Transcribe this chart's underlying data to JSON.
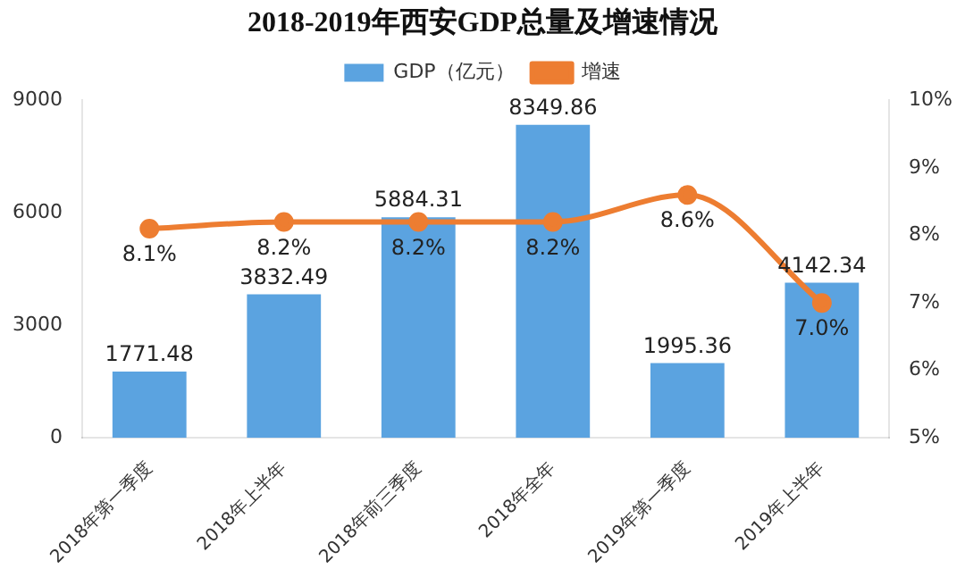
{
  "chart_data": {
    "type": "bar",
    "title": "2018-2019年西安GDP总量及增速情况",
    "categories": [
      "2018年第一季度",
      "2018年上半年",
      "2018年前三季度",
      "2018年全年",
      "2019年第一季度",
      "2019年上半年"
    ],
    "series": [
      {
        "name": "GDP（亿元）",
        "color": "#5ba3e0",
        "values": [
          1771.48,
          3832.49,
          5884.31,
          8349.86,
          1995.36,
          4142.34
        ],
        "value_labels": [
          "1771.48",
          "3832.49",
          "5884.31",
          "8349.86",
          "1995.36",
          "4142.34"
        ]
      },
      {
        "name": "增速",
        "type": "line",
        "axis": "y2",
        "color": "#ed7d31",
        "values": [
          8.1,
          8.2,
          8.2,
          8.2,
          8.6,
          7.0
        ],
        "value_labels": [
          "8.1%",
          "8.2%",
          "8.2%",
          "8.2%",
          "8.6%",
          "7.0%"
        ]
      }
    ],
    "ylim": [
      0,
      9000
    ],
    "yticks": [
      0,
      3000,
      6000,
      9000
    ],
    "y2lim": [
      5,
      10
    ],
    "y2ticks": [
      {
        "value": 5,
        "label": "5%"
      },
      {
        "value": 6,
        "label": "6%"
      },
      {
        "value": 7,
        "label": "7%"
      },
      {
        "value": 8,
        "label": "8%"
      },
      {
        "value": 9,
        "label": "9%"
      },
      {
        "value": 10,
        "label": "10%"
      }
    ],
    "legend": "top",
    "grid": false,
    "marker": "circle"
  }
}
